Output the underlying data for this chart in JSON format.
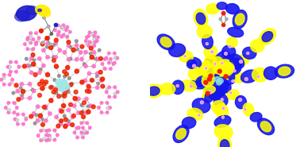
{
  "background_color": "#ffffff",
  "fig_width": 3.78,
  "fig_height": 1.85,
  "dpi": 100,
  "left": {
    "zr_color": "#a0e8e8",
    "o_color": "#ee2200",
    "c_color": "#888888",
    "h_color": "#d8d8d8",
    "linker_color": "#ff70c8",
    "drug_blue": "#1a1acc",
    "drug_yellow": "#ffee00",
    "drug_gray": "#666666",
    "drug_blue2": "#000066",
    "n_color": "#2222cc"
  },
  "right": {
    "blue": "#1414ee",
    "yellow": "#ffff00",
    "pink": "#ff88ff",
    "red": "#ee2200",
    "gray": "#aaaaaa",
    "cyan": "#88dddd",
    "white": "#ffffff"
  }
}
